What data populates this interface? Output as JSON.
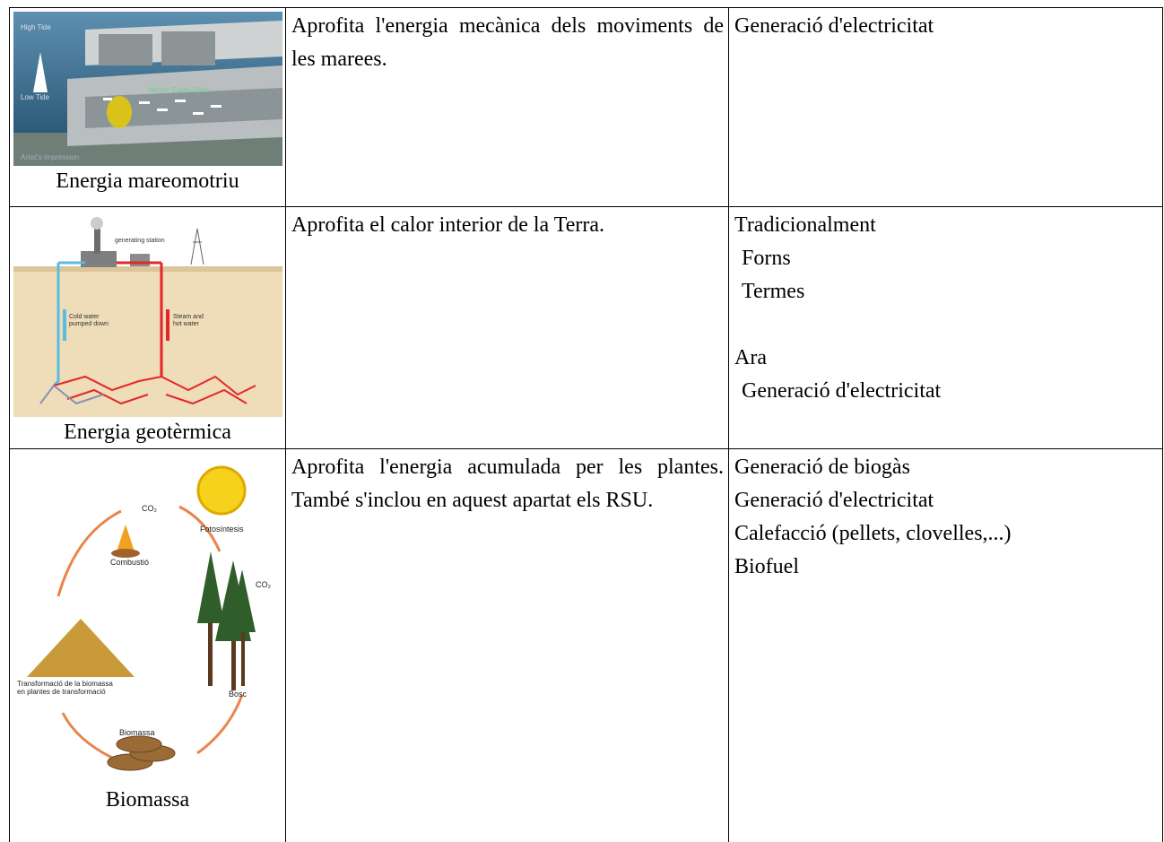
{
  "table": {
    "rows": [
      {
        "image": {
          "labels": [
            "High Tide",
            "Low Tide",
            "Wicket Gates Open",
            "Artist's Impression"
          ]
        },
        "caption": "Energia mareomotriu",
        "description": "Aprofita l'energia mecànica dels moviments de les marees.",
        "uses": [
          "Generació d'electricitat"
        ]
      },
      {
        "image": {
          "labels": [
            "generating station",
            "Cold water",
            "pumped down",
            "Steam and",
            "hot water"
          ]
        },
        "caption": "Energia geotèrmica",
        "description": "Aprofita el calor interior de la Terra.",
        "use_groups": [
          {
            "heading": "Tradicionalment",
            "items": [
              "Forns",
              "Termes"
            ]
          },
          {
            "heading": "Ara",
            "items": [
              "Generació d'electricitat"
            ]
          }
        ]
      },
      {
        "image": {
          "labels": [
            "CO₂",
            "Fotosíntesis",
            "Combustió",
            "CO₂",
            "Bosc",
            "Biomassa",
            "Transformació de la biomassa",
            "en plantes de transformació"
          ]
        },
        "caption": "Biomassa",
        "description": "Aprofita l'energia acumulada per les plantes. També s'inclou en aquest apartat els RSU.",
        "uses": [
          "Generació de biogàs",
          "Generació d'electricitat",
          "Calefacció (pellets, clovelles,...)",
          "Biofuel"
        ]
      }
    ]
  }
}
